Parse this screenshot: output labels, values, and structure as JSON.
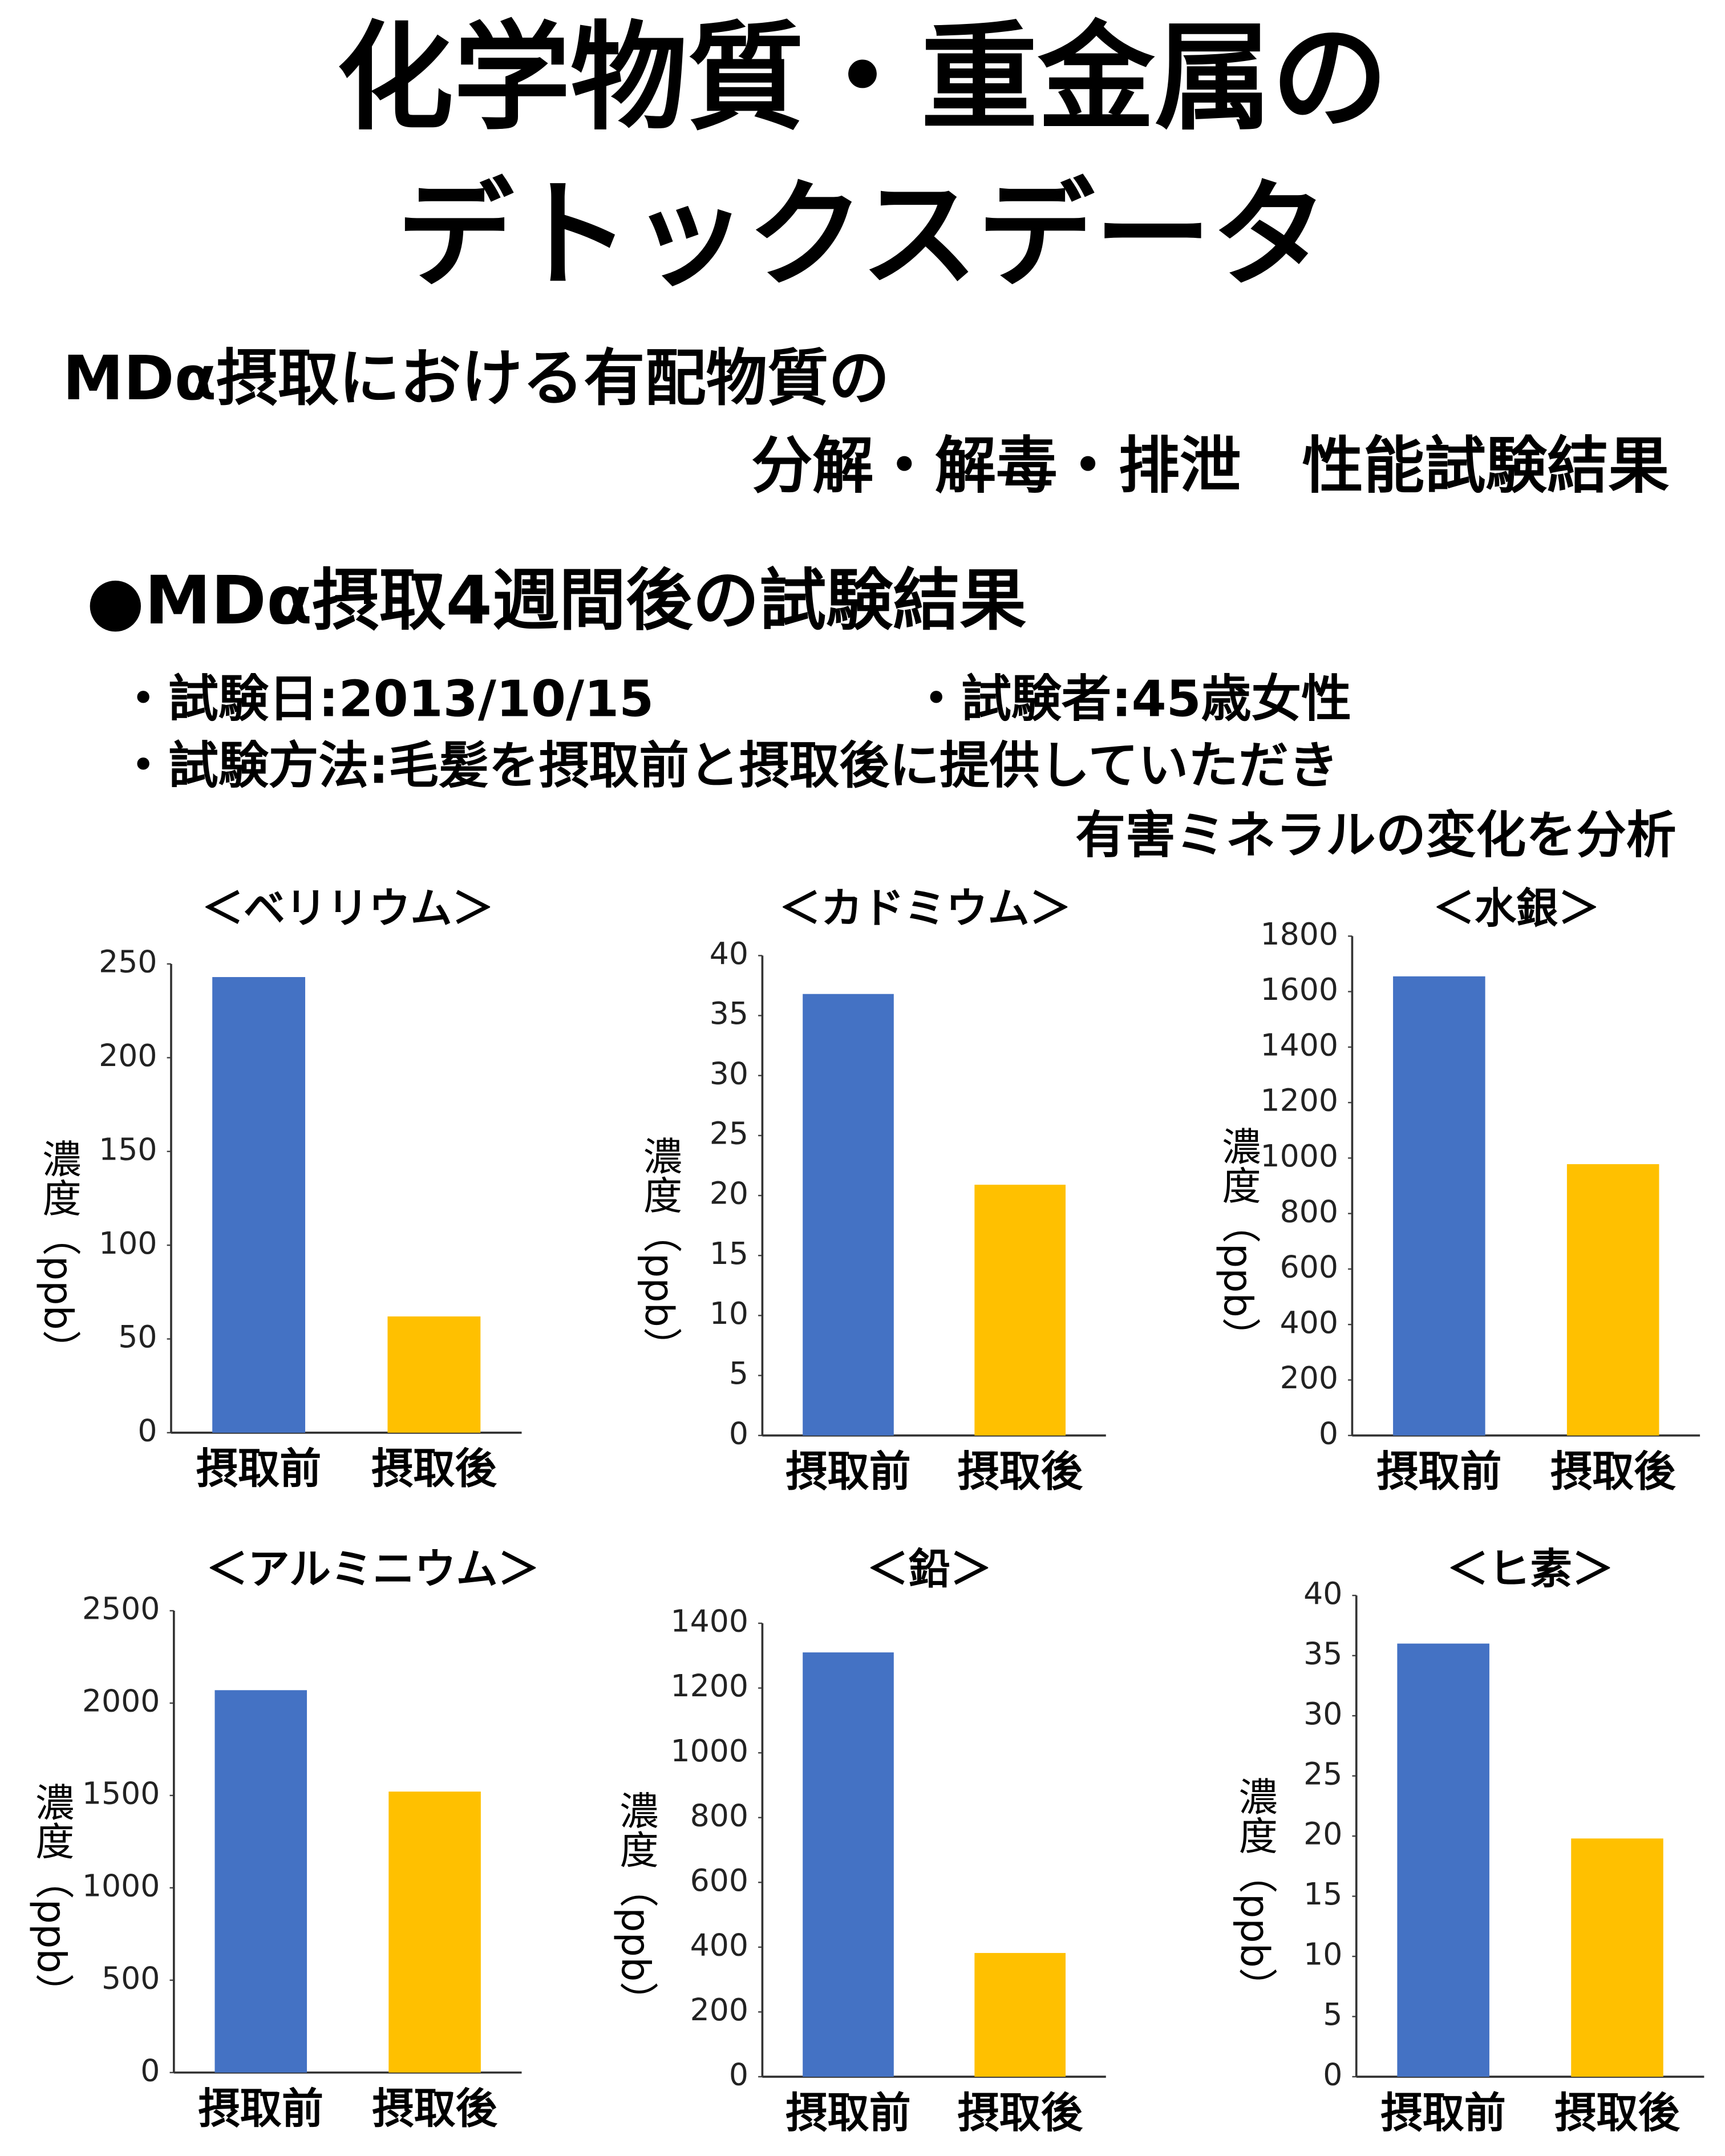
{
  "header": {
    "title_line1": "化学物質・重金属の",
    "title_line2": "デトックスデータ",
    "subtitle_line1": "MDα摂取における有配物質の",
    "subtitle_line2": "分解・解毒・排泄　性能試験結果",
    "section": "●MDα摂取4週間後の試験結果",
    "test_date": "・試験日:2013/10/15",
    "tester": "・試験者:45歳女性",
    "method_line1": "・試験方法:毛髪を摂取前と摂取後に提供していただき",
    "method_line2": "有害ミネラルの変化を分析"
  },
  "chart_data": [
    {
      "type": "bar",
      "title": "＜ベリリウム＞",
      "y_label": "濃度（ppb）",
      "categories": [
        "摂取前",
        "摂取後"
      ],
      "values": [
        243,
        62
      ],
      "colors": [
        "#4472c4",
        "#ffc000"
      ],
      "ylim": [
        0,
        250
      ],
      "yticks": [
        0,
        50,
        100,
        150,
        200,
        250
      ]
    },
    {
      "type": "bar",
      "title": "＜カドミウム＞",
      "y_label": "濃度（ppb）",
      "categories": [
        "摂取前",
        "摂取後"
      ],
      "values": [
        36.8,
        20.9
      ],
      "colors": [
        "#4472c4",
        "#ffc000"
      ],
      "ylim": [
        0,
        40
      ],
      "yticks": [
        0,
        5,
        10,
        15,
        20,
        25,
        30,
        35,
        40
      ]
    },
    {
      "type": "bar",
      "title": "＜水銀＞",
      "y_label": "濃度（ppb）",
      "categories": [
        "摂取前",
        "摂取後"
      ],
      "values": [
        1655,
        978
      ],
      "colors": [
        "#4472c4",
        "#ffc000"
      ],
      "ylim": [
        0,
        1800
      ],
      "yticks": [
        0,
        200,
        400,
        600,
        800,
        1000,
        1200,
        1400,
        1600,
        1800
      ]
    },
    {
      "type": "bar",
      "title": "＜アルミニウム＞",
      "y_label": "濃度（ppb）",
      "categories": [
        "摂取前",
        "摂取後"
      ],
      "values": [
        2070,
        1521
      ],
      "colors": [
        "#4472c4",
        "#ffc000"
      ],
      "ylim": [
        0,
        2500
      ],
      "yticks": [
        0,
        500,
        1000,
        1500,
        2000,
        2500
      ]
    },
    {
      "type": "bar",
      "title": "＜鉛＞",
      "y_label": "濃度（ppb）",
      "categories": [
        "摂取前",
        "摂取後"
      ],
      "values": [
        1310,
        382
      ],
      "colors": [
        "#4472c4",
        "#ffc000"
      ],
      "ylim": [
        0,
        1400
      ],
      "yticks": [
        0,
        200,
        400,
        600,
        800,
        1000,
        1200,
        1400
      ]
    },
    {
      "type": "bar",
      "title": "＜ヒ素＞",
      "y_label": "濃度（ppb）",
      "categories": [
        "摂取前",
        "摂取後"
      ],
      "values": [
        36.0,
        19.8
      ],
      "colors": [
        "#4472c4",
        "#ffc000"
      ],
      "ylim": [
        0,
        40
      ],
      "yticks": [
        0,
        5,
        10,
        15,
        20,
        25,
        30,
        35,
        40
      ]
    }
  ]
}
